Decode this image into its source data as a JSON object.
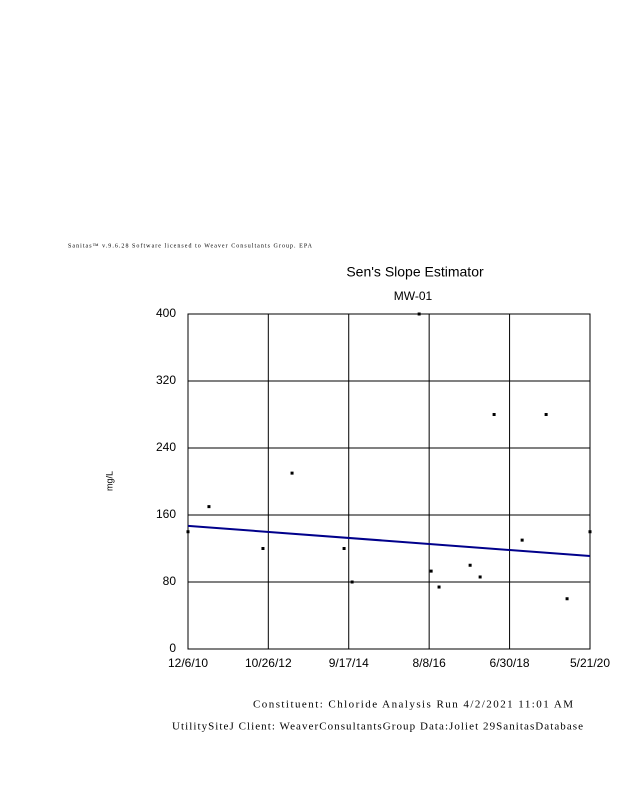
{
  "chart_data": {
    "type": "scatter",
    "header": "Sanitas™ v.9.6.28 Software licensed to Weaver Consultants Group. EPA",
    "title": "Sen's Slope Estimator",
    "subtitle": "MW-01",
    "y_label": "mg/L",
    "x": [
      "2010-12-06",
      "2011-06-04",
      "2012-09-10",
      "2013-05-18",
      "2014-08-08",
      "2014-10-16",
      "2016-05-14",
      "2016-08-25",
      "2016-11-01",
      "2017-07-26",
      "2017-10-20",
      "2018-02-17",
      "2018-10-16",
      "2019-05-10",
      "2019-11-06",
      "2020-05-21"
    ],
    "values": [
      140,
      170,
      120,
      210,
      120,
      80,
      400,
      93,
      74,
      100,
      86,
      280,
      130,
      280,
      60,
      140
    ],
    "color": "#000000",
    "trend": {
      "x": [
        "2010-12-06",
        "2020-05-21"
      ],
      "values": [
        147,
        111
      ],
      "color": "#00008b"
    },
    "xlim": [
      "2010-12-06",
      "2020-05-21"
    ],
    "xticks": [
      {
        "value": "2010-12-06",
        "label": "12/6/10"
      },
      {
        "value": "2012-10-26",
        "label": "10/26/12"
      },
      {
        "value": "2014-09-17",
        "label": "9/17/14"
      },
      {
        "value": "2016-08-08",
        "label": "8/8/16"
      },
      {
        "value": "2018-06-30",
        "label": "6/30/18"
      },
      {
        "value": "2020-05-21",
        "label": "5/21/20"
      }
    ],
    "ylim": [
      0,
      400
    ],
    "yticks": [
      0,
      80,
      160,
      240,
      320,
      400
    ],
    "grid": true,
    "footer": [
      "Constituent: Chloride Analysis Run 4/2/2021 11:01 AM",
      "UtilitySiteJ Client: WeaverConsultantsGroup Data:Joliet 29SanitasDatabase"
    ]
  }
}
